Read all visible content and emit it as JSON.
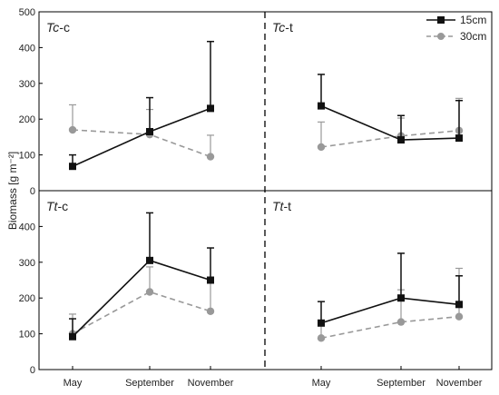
{
  "chart_data": {
    "type": "line",
    "ylabel": "Biomass [g m⁻²]",
    "y_ticks": [
      "0",
      "100",
      "200",
      "300",
      "400",
      "500"
    ],
    "ylim": [
      0,
      500
    ],
    "categories": [
      "May",
      "September",
      "November"
    ],
    "legend": {
      "placement": "top-right",
      "entries": [
        "15cm",
        "30cm"
      ]
    },
    "series_styles": [
      {
        "name": "15cm",
        "color": "#111111",
        "line": "solid",
        "marker": "square"
      },
      {
        "name": "30cm",
        "color": "#999999",
        "line": "dashed",
        "marker": "circle"
      }
    ],
    "panels": [
      {
        "title_italic": "Tc",
        "title_rest": "-c",
        "series": [
          {
            "name": "15cm",
            "values": [
              68,
              165,
              230
            ],
            "error": [
              32,
              95,
              187
            ]
          },
          {
            "name": "30cm",
            "values": [
              170,
              157,
              95
            ],
            "error": [
              70,
              70,
              60
            ]
          }
        ]
      },
      {
        "title_italic": "Tc",
        "title_rest": "-t",
        "series": [
          {
            "name": "15cm",
            "values": [
              237,
              142,
              147
            ],
            "error": [
              88,
              68,
              105
            ]
          },
          {
            "name": "30cm",
            "values": [
              122,
              153,
              168
            ],
            "error": [
              70,
              50,
              90
            ]
          }
        ]
      },
      {
        "title_italic": "Tt",
        "title_rest": "-c",
        "series": [
          {
            "name": "15cm",
            "values": [
              92,
              305,
              250
            ],
            "error": [
              50,
              133,
              90
            ]
          },
          {
            "name": "30cm",
            "values": [
              100,
              217,
              163
            ],
            "error": [
              55,
              70,
              85
            ]
          }
        ]
      },
      {
        "title_italic": "Tt",
        "title_rest": "-t",
        "series": [
          {
            "name": "15cm",
            "values": [
              130,
              200,
              182
            ],
            "error": [
              60,
              125,
              80
            ]
          },
          {
            "name": "30cm",
            "values": [
              88,
              133,
              148
            ],
            "error": [
              50,
              90,
              135
            ]
          }
        ]
      }
    ]
  }
}
